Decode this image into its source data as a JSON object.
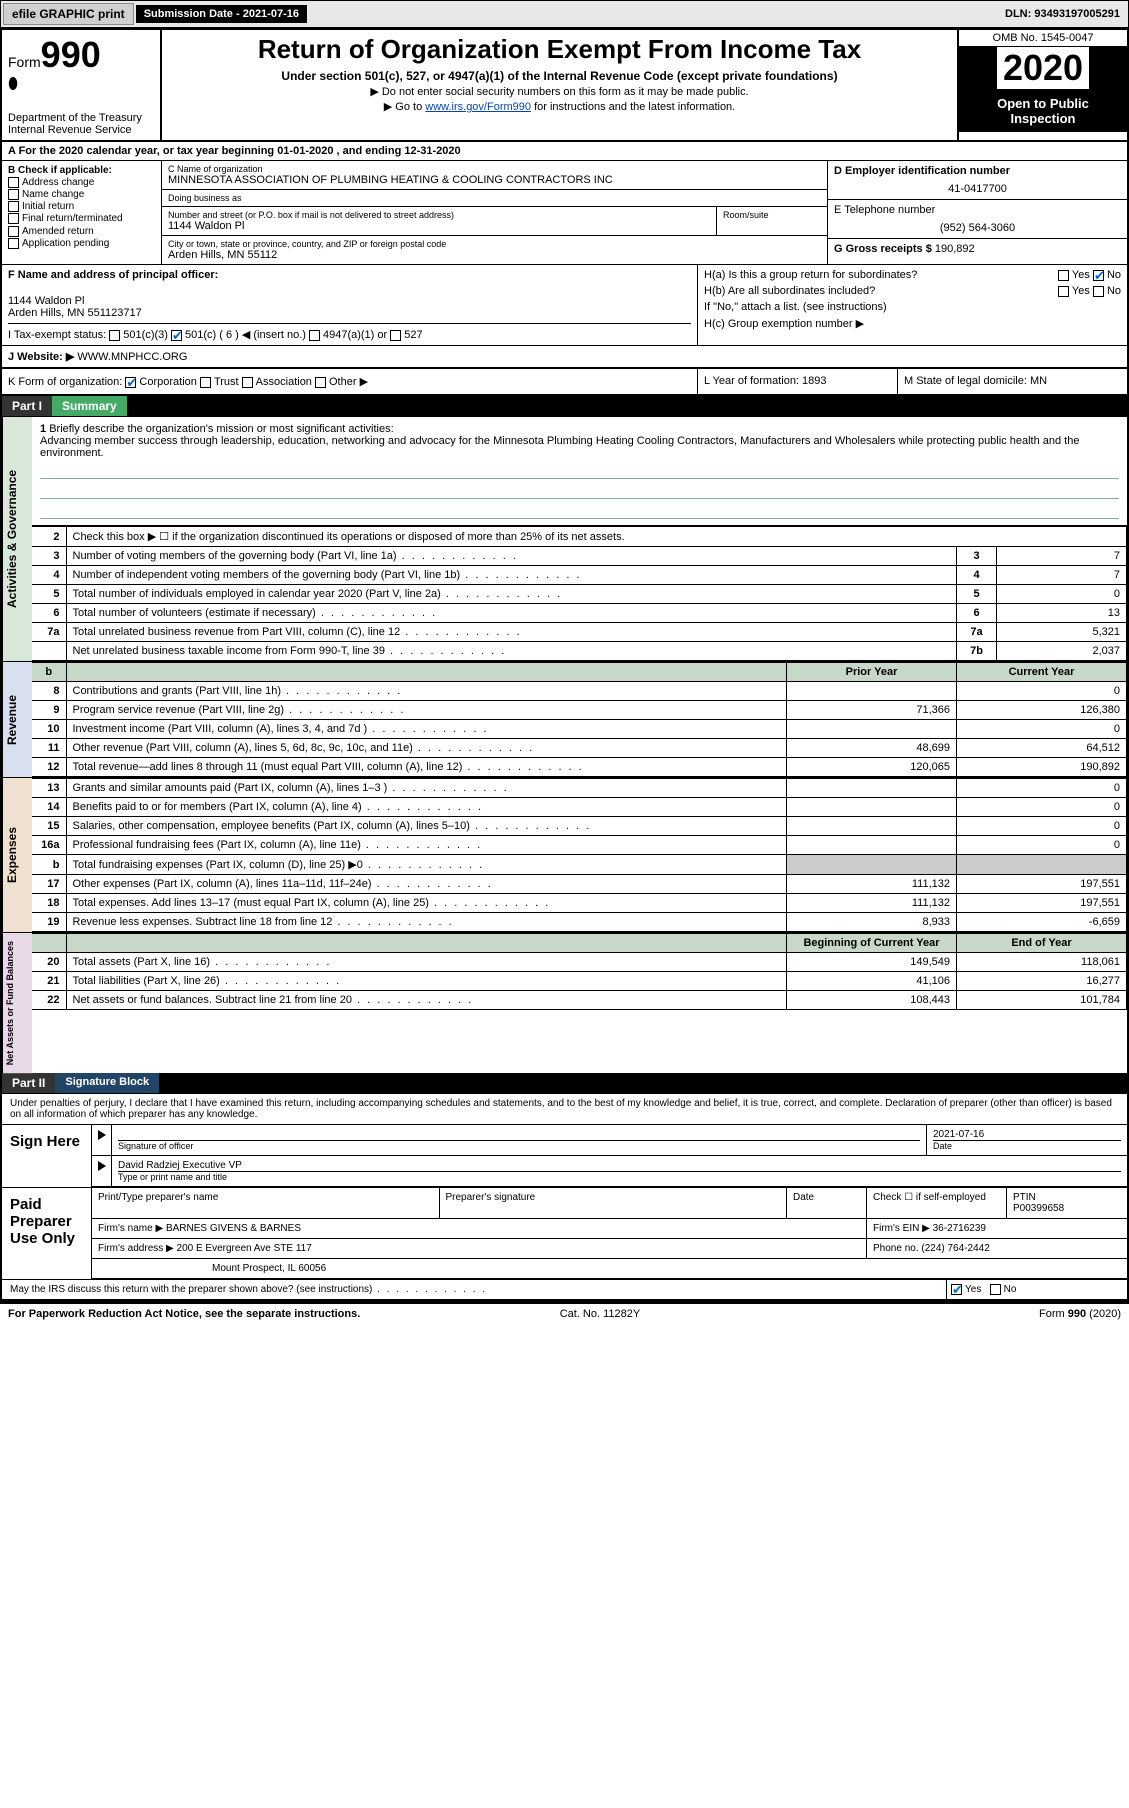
{
  "topbar": {
    "efile": "efile GRAPHIC print",
    "submission_label": "Submission Date - 2021-07-16",
    "dln": "DLN: 93493197005291"
  },
  "header": {
    "form_label": "Form",
    "form_num": "990",
    "dept": "Department of the Treasury\nInternal Revenue Service",
    "title": "Return of Organization Exempt From Income Tax",
    "subtitle": "Under section 501(c), 527, or 4947(a)(1) of the Internal Revenue Code (except private foundations)",
    "note1": "▶ Do not enter social security numbers on this form as it may be made public.",
    "note2_pre": "▶ Go to ",
    "note2_link": "www.irs.gov/Form990",
    "note2_post": " for instructions and the latest information.",
    "omb": "OMB No. 1545-0047",
    "year": "2020",
    "open": "Open to Public Inspection"
  },
  "row_a": "A For the 2020 calendar year, or tax year beginning 01-01-2020   , and ending 12-31-2020",
  "col_b": {
    "label": "B Check if applicable:",
    "items": [
      "Address change",
      "Name change",
      "Initial return",
      "Final return/terminated",
      "Amended return",
      "Application pending"
    ]
  },
  "col_c": {
    "name_label": "C Name of organization",
    "name": "MINNESOTA ASSOCIATION OF PLUMBING HEATING & COOLING CONTRACTORS INC",
    "dba_label": "Doing business as",
    "dba": "",
    "addr_label": "Number and street (or P.O. box if mail is not delivered to street address)",
    "room_label": "Room/suite",
    "addr": "1144 Waldon Pl",
    "city_label": "City or town, state or province, country, and ZIP or foreign postal code",
    "city": "Arden Hills, MN  55112"
  },
  "col_d": {
    "ein_label": "D Employer identification number",
    "ein": "41-0417700",
    "tel_label": "E Telephone number",
    "tel": "(952) 564-3060",
    "gross_label": "G Gross receipts $ ",
    "gross": "190,892"
  },
  "row_f": {
    "label": "F  Name and address of principal officer:",
    "addr1": "1144 Waldon Pl",
    "addr2": "Arden Hills, MN  551123717"
  },
  "row_h": {
    "ha": "H(a)  Is this a group return for subordinates?",
    "ha_ans_yes": "Yes",
    "ha_ans_no": "No",
    "hb": "H(b)  Are all subordinates included?",
    "hb_note": "If \"No,\" attach a list. (see instructions)",
    "hc": "H(c)  Group exemption number ▶"
  },
  "row_i": {
    "label": "I   Tax-exempt status:",
    "opts": [
      "501(c)(3)",
      "501(c) ( 6 ) ◀ (insert no.)",
      "4947(a)(1) or",
      "527"
    ]
  },
  "row_j": {
    "label": "J   Website: ▶",
    "value": "WWW.MNPHCC.ORG"
  },
  "row_k": {
    "label": "K Form of organization:",
    "opts": [
      "Corporation",
      "Trust",
      "Association",
      "Other ▶"
    ]
  },
  "row_l": {
    "label": "L Year of formation: ",
    "value": "1893"
  },
  "row_m": {
    "label": "M State of legal domicile: ",
    "value": "MN"
  },
  "part1": {
    "num": "Part I",
    "title": "Summary"
  },
  "mission": {
    "num": "1",
    "label": "Briefly describe the organization's mission or most significant activities:",
    "text": "Advancing member success through leadership, education, networking and advocacy for the Minnesota Plumbing Heating Cooling Contractors, Manufacturers and Wholesalers while protecting public health and the environment."
  },
  "gov_rows": [
    {
      "n": "2",
      "d": "Check this box ▶ ☐  if the organization discontinued its operations or disposed of more than 25% of its net assets.",
      "box": "",
      "v": ""
    },
    {
      "n": "3",
      "d": "Number of voting members of the governing body (Part VI, line 1a)",
      "box": "3",
      "v": "7"
    },
    {
      "n": "4",
      "d": "Number of independent voting members of the governing body (Part VI, line 1b)",
      "box": "4",
      "v": "7"
    },
    {
      "n": "5",
      "d": "Total number of individuals employed in calendar year 2020 (Part V, line 2a)",
      "box": "5",
      "v": "0"
    },
    {
      "n": "6",
      "d": "Total number of volunteers (estimate if necessary)",
      "box": "6",
      "v": "13"
    },
    {
      "n": "7a",
      "d": "Total unrelated business revenue from Part VIII, column (C), line 12",
      "box": "7a",
      "v": "5,321"
    },
    {
      "n": "",
      "d": "Net unrelated business taxable income from Form 990-T, line 39",
      "box": "7b",
      "v": "2,037"
    }
  ],
  "pycy_hdr": {
    "b": "b",
    "py": "Prior Year",
    "cy": "Current Year"
  },
  "rev_rows": [
    {
      "n": "8",
      "d": "Contributions and grants (Part VIII, line 1h)",
      "py": "",
      "cy": "0"
    },
    {
      "n": "9",
      "d": "Program service revenue (Part VIII, line 2g)",
      "py": "71,366",
      "cy": "126,380"
    },
    {
      "n": "10",
      "d": "Investment income (Part VIII, column (A), lines 3, 4, and 7d )",
      "py": "",
      "cy": "0"
    },
    {
      "n": "11",
      "d": "Other revenue (Part VIII, column (A), lines 5, 6d, 8c, 9c, 10c, and 11e)",
      "py": "48,699",
      "cy": "64,512"
    },
    {
      "n": "12",
      "d": "Total revenue—add lines 8 through 11 (must equal Part VIII, column (A), line 12)",
      "py": "120,065",
      "cy": "190,892"
    }
  ],
  "exp_rows": [
    {
      "n": "13",
      "d": "Grants and similar amounts paid (Part IX, column (A), lines 1–3 )",
      "py": "",
      "cy": "0"
    },
    {
      "n": "14",
      "d": "Benefits paid to or for members (Part IX, column (A), line 4)",
      "py": "",
      "cy": "0"
    },
    {
      "n": "15",
      "d": "Salaries, other compensation, employee benefits (Part IX, column (A), lines 5–10)",
      "py": "",
      "cy": "0"
    },
    {
      "n": "16a",
      "d": "Professional fundraising fees (Part IX, column (A), line 11e)",
      "py": "",
      "cy": "0"
    },
    {
      "n": "b",
      "d": "Total fundraising expenses (Part IX, column (D), line 25) ▶0",
      "py": "shade",
      "cy": "shade"
    },
    {
      "n": "17",
      "d": "Other expenses (Part IX, column (A), lines 11a–11d, 11f–24e)",
      "py": "111,132",
      "cy": "197,551"
    },
    {
      "n": "18",
      "d": "Total expenses. Add lines 13–17 (must equal Part IX, column (A), line 25)",
      "py": "111,132",
      "cy": "197,551"
    },
    {
      "n": "19",
      "d": "Revenue less expenses. Subtract line 18 from line 12",
      "py": "8,933",
      "cy": "-6,659"
    }
  ],
  "net_hdr": {
    "py": "Beginning of Current Year",
    "cy": "End of Year"
  },
  "net_rows": [
    {
      "n": "20",
      "d": "Total assets (Part X, line 16)",
      "py": "149,549",
      "cy": "118,061"
    },
    {
      "n": "21",
      "d": "Total liabilities (Part X, line 26)",
      "py": "41,106",
      "cy": "16,277"
    },
    {
      "n": "22",
      "d": "Net assets or fund balances. Subtract line 21 from line 20",
      "py": "108,443",
      "cy": "101,784"
    }
  ],
  "part2": {
    "num": "Part II",
    "title": "Signature Block"
  },
  "sig_text": "Under penalties of perjury, I declare that I have examined this return, including accompanying schedules and statements, and to the best of my knowledge and belief, it is true, correct, and complete. Declaration of preparer (other than officer) is based on all information of which preparer has any knowledge.",
  "sign_here": "Sign Here",
  "sig_officer_label": "Signature of officer",
  "sig_date": "2021-07-16",
  "sig_date_label": "Date",
  "sig_name": "David Radziej  Executive VP",
  "sig_name_label": "Type or print name and title",
  "paid": "Paid Preparer Use Only",
  "prep": {
    "name_label": "Print/Type preparer's name",
    "sig_label": "Preparer's signature",
    "date_label": "Date",
    "check_label": "Check ☐ if self-employed",
    "ptin_label": "PTIN",
    "ptin": "P00399658",
    "firm_name_label": "Firm's name     ▶",
    "firm_name": "BARNES GIVENS & BARNES",
    "firm_ein_label": "Firm's EIN ▶ ",
    "firm_ein": "36-2716239",
    "firm_addr_label": "Firm's address ▶",
    "firm_addr1": "200 E Evergreen Ave STE 117",
    "firm_addr2": "Mount Prospect, IL  60056",
    "phone_label": "Phone no. ",
    "phone": "(224) 764-2442"
  },
  "discuss": "May the IRS discuss this return with the preparer shown above? (see instructions)",
  "discuss_yes": "Yes",
  "discuss_no": "No",
  "footer": {
    "l": "For Paperwork Reduction Act Notice, see the separate instructions.",
    "m": "Cat. No. 11282Y",
    "r": "Form 990 (2020)"
  },
  "side": {
    "gov": "Activities & Governance",
    "rev": "Revenue",
    "exp": "Expenses",
    "net": "Net Assets or Fund Balances"
  }
}
